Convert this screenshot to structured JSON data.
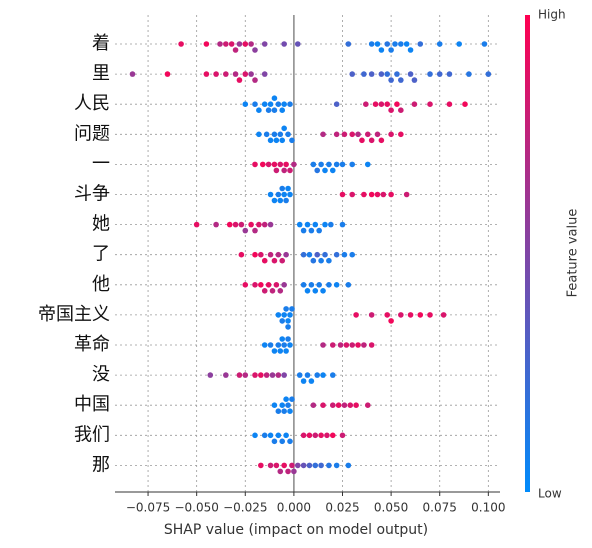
{
  "chart_data": {
    "type": "beeswarm",
    "xlabel": "SHAP value (impact on model output)",
    "colorbar_label": "Feature value",
    "colorbar_high": "High",
    "colorbar_low": "Low",
    "colormap": [
      "#008bfb",
      "#ff0051"
    ],
    "xlim": [
      -0.092,
      0.106
    ],
    "xticks": [
      {
        "value": -0.075,
        "label": "−0.075"
      },
      {
        "value": -0.05,
        "label": "−0.050"
      },
      {
        "value": -0.025,
        "label": "−0.025"
      },
      {
        "value": 0,
        "label": "0.000"
      },
      {
        "value": 0.025,
        "label": "0.025"
      },
      {
        "value": 0.05,
        "label": "0.050"
      },
      {
        "value": 0.075,
        "label": "0.075"
      },
      {
        "value": 0.1,
        "label": "0.100"
      }
    ],
    "grid": true,
    "series": [
      {
        "name": "着",
        "values": [
          -0.058,
          -0.045,
          -0.038,
          -0.035,
          -0.032,
          -0.03,
          -0.028,
          -0.025,
          -0.022,
          -0.02,
          -0.015,
          -0.005,
          0.002,
          0.028,
          0.04,
          0.043,
          0.045,
          0.048,
          0.05,
          0.052,
          0.055,
          0.058,
          0.06,
          0.065,
          0.075,
          0.085,
          0.098
        ],
        "feature_values": [
          0.9,
          0.95,
          0.7,
          0.8,
          0.85,
          0.75,
          0.6,
          0.9,
          0.7,
          0.55,
          0.5,
          0.45,
          0.4,
          0.2,
          0.1,
          0.05,
          0.05,
          0.15,
          0.1,
          0.1,
          0.1,
          0.05,
          0.05,
          0.2,
          0.1,
          0.05,
          0.1
        ]
      },
      {
        "name": "里",
        "values": [
          -0.083,
          -0.065,
          -0.045,
          -0.04,
          -0.035,
          -0.03,
          -0.028,
          -0.025,
          -0.022,
          -0.02,
          -0.015,
          0.03,
          0.036,
          0.04,
          0.045,
          0.048,
          0.05,
          0.053,
          0.055,
          0.06,
          0.062,
          0.07,
          0.075,
          0.08,
          0.09,
          0.1
        ],
        "feature_values": [
          0.6,
          0.95,
          0.9,
          0.85,
          0.8,
          0.7,
          0.9,
          0.85,
          0.6,
          0.7,
          0.5,
          0.3,
          0.25,
          0.3,
          0.3,
          0.2,
          0.25,
          0.2,
          0.25,
          0.3,
          0.3,
          0.2,
          0.25,
          0.25,
          0.15,
          0.2
        ]
      },
      {
        "name": "人民",
        "values": [
          -0.025,
          -0.02,
          -0.018,
          -0.015,
          -0.013,
          -0.012,
          -0.01,
          -0.01,
          -0.008,
          -0.006,
          -0.005,
          -0.002,
          0.022,
          0.037,
          0.042,
          0.045,
          0.048,
          0.05,
          0.053,
          0.055,
          0.062,
          0.07,
          0.08,
          0.088
        ],
        "feature_values": [
          0.05,
          0.1,
          0.05,
          0.05,
          0.1,
          0.05,
          0.1,
          0.05,
          0.1,
          0.05,
          0.05,
          0.1,
          0.3,
          0.8,
          0.9,
          0.85,
          0.9,
          0.85,
          0.95,
          0.8,
          0.8,
          0.85,
          0.9,
          0.95
        ]
      },
      {
        "name": "问题",
        "values": [
          -0.018,
          -0.014,
          -0.012,
          -0.01,
          -0.009,
          -0.007,
          -0.006,
          -0.005,
          -0.003,
          -0.001,
          0.015,
          0.022,
          0.026,
          0.03,
          0.033,
          0.035,
          0.038,
          0.04,
          0.043,
          0.045,
          0.05,
          0.055
        ],
        "feature_values": [
          0.05,
          0.1,
          0.05,
          0.1,
          0.05,
          0.1,
          0.05,
          0.05,
          0.1,
          0.1,
          0.7,
          0.75,
          0.8,
          0.85,
          0.7,
          0.9,
          0.8,
          0.85,
          0.75,
          0.9,
          0.85,
          0.9
        ]
      },
      {
        "name": "一",
        "values": [
          -0.02,
          -0.016,
          -0.013,
          -0.01,
          -0.009,
          -0.007,
          -0.005,
          -0.004,
          -0.002,
          0,
          0.01,
          0.012,
          0.014,
          0.016,
          0.018,
          0.02,
          0.022,
          0.025,
          0.03,
          0.038
        ],
        "feature_values": [
          0.9,
          0.95,
          0.85,
          0.9,
          0.8,
          0.85,
          0.75,
          0.9,
          0.8,
          0.7,
          0.1,
          0.15,
          0.1,
          0.05,
          0.1,
          0.05,
          0.1,
          0.1,
          0.1,
          0.05
        ]
      },
      {
        "name": "斗争",
        "values": [
          -0.012,
          -0.01,
          -0.008,
          -0.007,
          -0.006,
          -0.005,
          -0.004,
          -0.003,
          -0.002,
          0.025,
          0.03,
          0.036,
          0.04,
          0.043,
          0.046,
          0.05,
          0.058
        ],
        "feature_values": [
          0.05,
          0.05,
          0.1,
          0.05,
          0.1,
          0.05,
          0.1,
          0.05,
          0.05,
          0.9,
          0.85,
          0.9,
          0.95,
          0.9,
          0.85,
          0.9,
          0.8
        ]
      },
      {
        "name": "她",
        "values": [
          -0.05,
          -0.04,
          -0.033,
          -0.03,
          -0.027,
          -0.025,
          -0.022,
          -0.02,
          -0.018,
          -0.015,
          -0.012,
          0.003,
          0.005,
          0.007,
          0.009,
          0.011,
          0.013,
          0.016,
          0.019,
          0.025
        ],
        "feature_values": [
          0.9,
          0.7,
          0.95,
          0.85,
          0.8,
          0.6,
          0.9,
          0.7,
          0.85,
          0.75,
          0.6,
          0.05,
          0.1,
          0.05,
          0.1,
          0.05,
          0.1,
          0.05,
          0.1,
          0.1
        ]
      },
      {
        "name": "了",
        "values": [
          -0.027,
          -0.02,
          -0.017,
          -0.015,
          -0.012,
          -0.01,
          -0.008,
          -0.006,
          -0.004,
          0.005,
          0.008,
          0.01,
          0.012,
          0.014,
          0.016,
          0.018,
          0.022,
          0.026,
          0.03
        ],
        "feature_values": [
          0.9,
          0.95,
          0.85,
          0.9,
          0.75,
          0.85,
          0.7,
          0.8,
          0.6,
          0.2,
          0.1,
          0.15,
          0.3,
          0.1,
          0.2,
          0.1,
          0.2,
          0.1,
          0.1
        ]
      },
      {
        "name": "他",
        "values": [
          -0.025,
          -0.02,
          -0.017,
          -0.015,
          -0.013,
          -0.011,
          -0.009,
          -0.007,
          -0.005,
          0.005,
          0.007,
          0.009,
          0.011,
          0.013,
          0.015,
          0.018,
          0.022,
          0.028
        ],
        "feature_values": [
          0.9,
          0.85,
          0.95,
          0.8,
          0.9,
          0.75,
          0.85,
          0.7,
          0.6,
          0.1,
          0.05,
          0.1,
          0.05,
          0.1,
          0.05,
          0.1,
          0.05,
          0.1
        ]
      },
      {
        "name": "帝国主义",
        "values": [
          -0.008,
          -0.006,
          -0.005,
          -0.004,
          -0.003,
          -0.003,
          -0.002,
          -0.001,
          0.032,
          0.04,
          0.048,
          0.05,
          0.055,
          0.06,
          0.065,
          0.07,
          0.077
        ],
        "feature_values": [
          0.05,
          0.1,
          0.05,
          0.1,
          0.05,
          0.1,
          0.05,
          0.1,
          0.9,
          0.8,
          0.9,
          0.95,
          0.85,
          0.9,
          0.95,
          0.9,
          0.85
        ]
      },
      {
        "name": "革命",
        "values": [
          -0.015,
          -0.012,
          -0.01,
          -0.008,
          -0.007,
          -0.006,
          -0.005,
          -0.004,
          -0.003,
          -0.002,
          0.015,
          0.02,
          0.024,
          0.027,
          0.03,
          0.033,
          0.036,
          0.04
        ],
        "feature_values": [
          0.05,
          0.1,
          0.05,
          0.1,
          0.05,
          0.05,
          0.1,
          0.05,
          0.1,
          0.05,
          0.7,
          0.8,
          0.75,
          0.85,
          0.8,
          0.9,
          0.75,
          0.85
        ]
      },
      {
        "name": "没",
        "values": [
          -0.043,
          -0.035,
          -0.028,
          -0.025,
          -0.02,
          -0.017,
          -0.014,
          -0.011,
          -0.008,
          -0.005,
          0.003,
          0.005,
          0.007,
          0.009,
          0.012,
          0.015,
          0.02
        ],
        "feature_values": [
          0.55,
          0.6,
          0.8,
          0.7,
          0.85,
          0.9,
          0.75,
          0.6,
          0.7,
          0.5,
          0.1,
          0.05,
          0.1,
          0.05,
          0.1,
          0.05,
          0.1
        ]
      },
      {
        "name": "中国",
        "values": [
          -0.01,
          -0.008,
          -0.006,
          -0.005,
          -0.004,
          -0.003,
          -0.002,
          -0.001,
          0.01,
          0.015,
          0.02,
          0.023,
          0.026,
          0.029,
          0.032,
          0.038
        ],
        "feature_values": [
          0.05,
          0.1,
          0.05,
          0.1,
          0.05,
          0.1,
          0.05,
          0.1,
          0.7,
          0.85,
          0.8,
          0.9,
          0.75,
          0.85,
          0.9,
          0.8
        ]
      },
      {
        "name": "我们",
        "values": [
          -0.02,
          -0.015,
          -0.012,
          -0.01,
          -0.008,
          -0.006,
          -0.004,
          -0.002,
          0.005,
          0.008,
          0.011,
          0.014,
          0.017,
          0.02,
          0.025
        ],
        "feature_values": [
          0.05,
          0.1,
          0.05,
          0.1,
          0.05,
          0.1,
          0.05,
          0.1,
          0.85,
          0.9,
          0.8,
          0.9,
          0.85,
          0.95,
          0.8
        ]
      },
      {
        "name": "那",
        "values": [
          -0.017,
          -0.012,
          -0.009,
          -0.007,
          -0.005,
          -0.003,
          -0.001,
          0,
          0.002,
          0.005,
          0.008,
          0.011,
          0.014,
          0.018,
          0.022,
          0.028
        ],
        "feature_values": [
          0.9,
          0.8,
          0.85,
          0.7,
          0.9,
          0.75,
          0.8,
          0.6,
          0.5,
          0.4,
          0.3,
          0.2,
          0.25,
          0.15,
          0.1,
          0.1
        ]
      }
    ]
  }
}
